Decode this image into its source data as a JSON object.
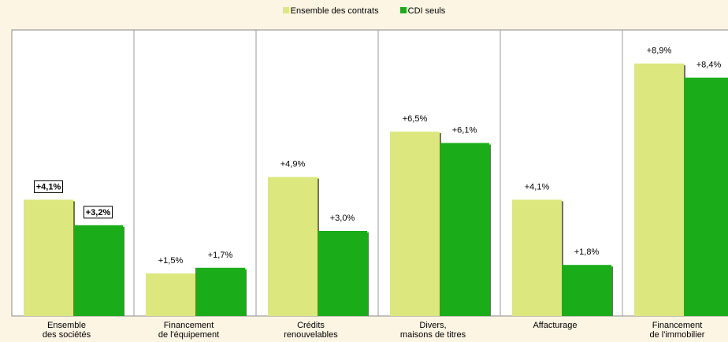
{
  "chart_data": {
    "type": "bar",
    "categories": [
      [
        "Ensemble",
        "des sociétés"
      ],
      [
        "Financement",
        "de l'équipement"
      ],
      [
        "Crédits",
        "renouvelables"
      ],
      [
        "Divers,",
        "maisons de titres"
      ],
      [
        "Affacturage"
      ],
      [
        "Financement",
        "de l'immobilier"
      ]
    ],
    "series": [
      {
        "name": "Ensemble des contrats",
        "color": "#dce87e",
        "values": [
          4.1,
          1.5,
          4.9,
          6.5,
          4.1,
          8.9
        ],
        "labels": [
          "+4,1%",
          "+1,5%",
          "+4,9%",
          "+6,5%",
          "+4,1%",
          "+8,9%"
        ]
      },
      {
        "name": "CDI seuls",
        "color": "#1aad19",
        "values": [
          3.2,
          1.7,
          3.0,
          6.1,
          1.8,
          8.4
        ],
        "labels": [
          "+3,2%",
          "+1,7%",
          "+3,0%",
          "+6,1%",
          "+1,8%",
          "+8,4%"
        ]
      }
    ],
    "boxed_category": 0,
    "ylim": [
      0,
      10
    ],
    "legend_position": "top-center",
    "grid": false
  }
}
